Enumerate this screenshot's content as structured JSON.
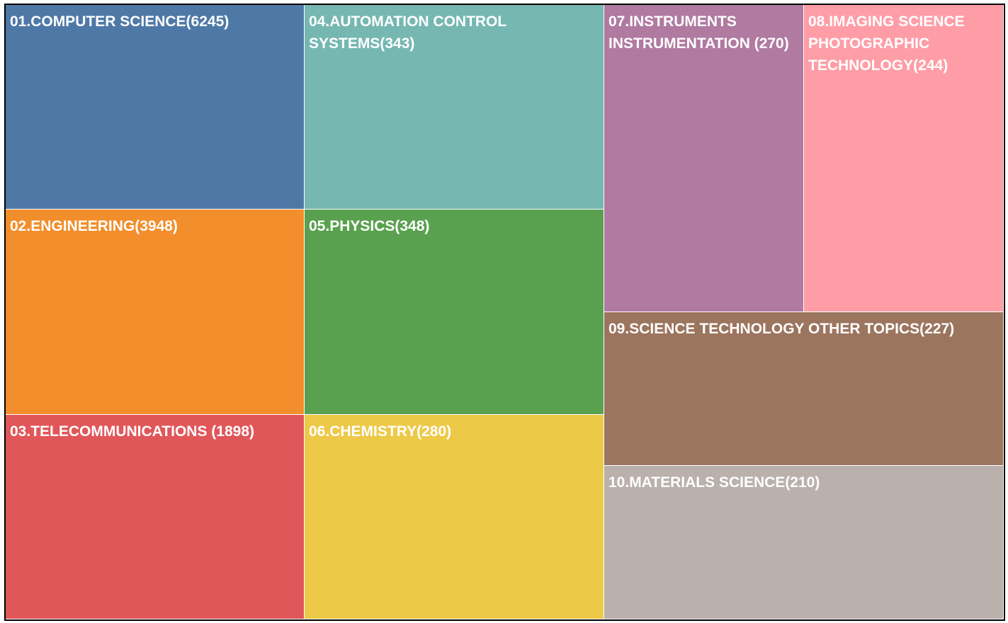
{
  "chart_data": {
    "type": "treemap",
    "tiles": [
      {
        "label": "01.COMPUTER SCIENCE(6245)",
        "category": "COMPUTER SCIENCE",
        "value": 6245,
        "color": "#4E79A7"
      },
      {
        "label": "02.ENGINEERING(3948)",
        "category": "ENGINEERING",
        "value": 3948,
        "color": "#F28E2B"
      },
      {
        "label": "03.TELECOMMUNICATIONS (1898)",
        "category": "TELECOMMUNICATIONS",
        "value": 1898,
        "color": "#E15759"
      },
      {
        "label": "04.AUTOMATION CONTROL SYSTEMS(343)",
        "category": "AUTOMATION CONTROL SYSTEMS",
        "value": 343,
        "color": "#76B7B2"
      },
      {
        "label": "05.PHYSICS(348)",
        "category": "PHYSICS",
        "value": 348,
        "color": "#59A14F"
      },
      {
        "label": "06.CHEMISTRY(280)",
        "category": "CHEMISTRY",
        "value": 280,
        "color": "#EDC948"
      },
      {
        "label": "07.INSTRUMENTS INSTRUMENTATION (270)",
        "category": "INSTRUMENTS INSTRUMENTATION",
        "value": 270,
        "color": "#B07AA1"
      },
      {
        "label": "08.IMAGING SCIENCE PHOTOGRAPHIC TECHNOLOGY(244)",
        "category": "IMAGING SCIENCE PHOTOGRAPHIC TECHNOLOGY",
        "value": 244,
        "color": "#FF9DA7"
      },
      {
        "label": "09.SCIENCE TECHNOLOGY OTHER TOPICS(227)",
        "category": "SCIENCE TECHNOLOGY OTHER TOPICS",
        "value": 227,
        "color": "#9C755F"
      },
      {
        "label": "10.MATERIALS SCIENCE(210)",
        "category": "MATERIALS SCIENCE",
        "value": 210,
        "color": "#BAB0AC"
      }
    ]
  }
}
